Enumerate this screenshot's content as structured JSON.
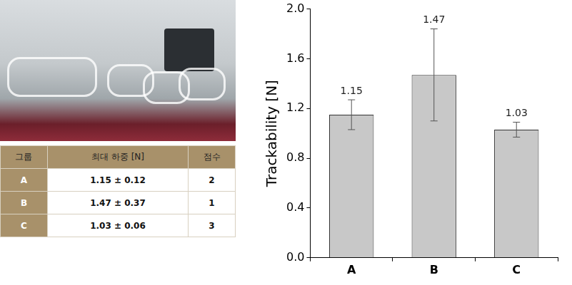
{
  "chart_data": {
    "type": "bar",
    "y_label": "Trackability [N]",
    "categories": [
      "A",
      "B",
      "C"
    ],
    "values": [
      1.15,
      1.47,
      1.03
    ],
    "errors": [
      0.12,
      0.37,
      0.06
    ],
    "color": "#c8c8c8",
    "ylim": [
      0,
      2.0
    ],
    "yticks": [
      {
        "value": 0,
        "label": "0.0"
      },
      0.4,
      0.8,
      1.2,
      1.6,
      {
        "value": 2.0,
        "label": "2.0"
      }
    ],
    "grid": false,
    "data_labels": true
  },
  "table": {
    "header": [
      "그룹",
      "최대 하중 [N]",
      "점수"
    ],
    "rows": [
      [
        "A",
        "1.15 ± 0.12",
        "2"
      ],
      [
        "B",
        "1.47 ± 0.37",
        "1"
      ],
      [
        "C",
        "1.03 ± 0.06",
        "3"
      ]
    ]
  }
}
